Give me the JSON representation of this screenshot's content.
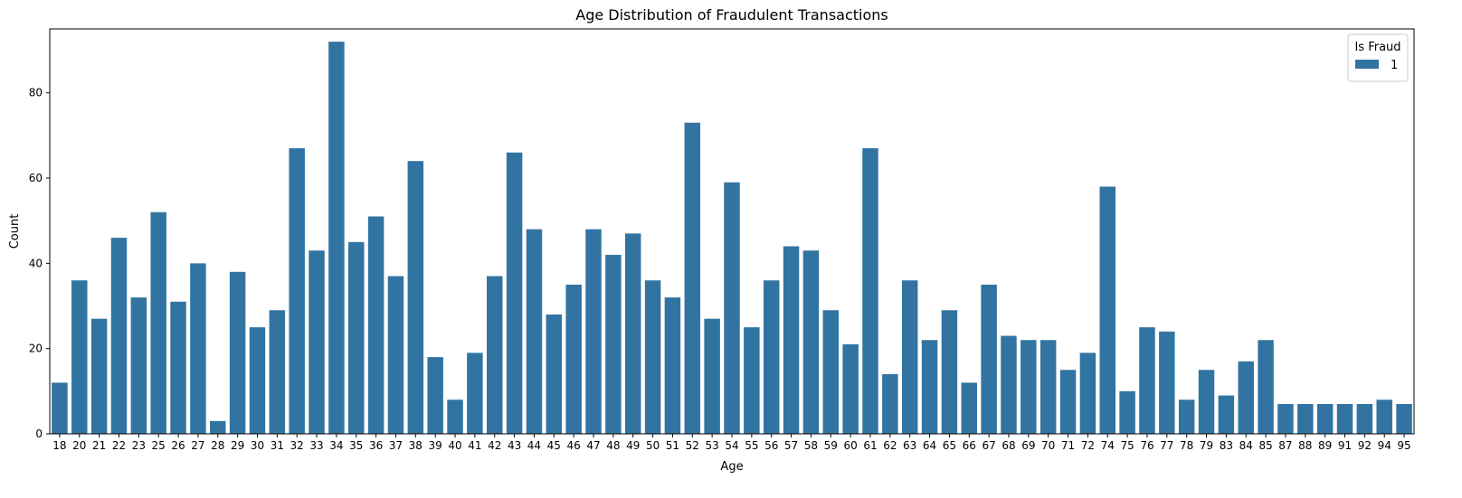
{
  "chart_data": {
    "type": "bar",
    "title": "Age Distribution of Fraudulent Transactions",
    "xlabel": "Age",
    "ylabel": "Count",
    "ylim": [
      0,
      95
    ],
    "yticks": [
      0,
      20,
      40,
      60,
      80
    ],
    "grid": false,
    "legend": {
      "title": "Is Fraud",
      "entries": [
        "1"
      ],
      "position": "top-right"
    },
    "colors": {
      "bar": "#3274a1"
    },
    "categories": [
      "18",
      "20",
      "21",
      "22",
      "23",
      "25",
      "26",
      "27",
      "28",
      "29",
      "30",
      "31",
      "32",
      "33",
      "34",
      "35",
      "36",
      "37",
      "38",
      "39",
      "40",
      "41",
      "42",
      "43",
      "44",
      "45",
      "46",
      "47",
      "48",
      "49",
      "50",
      "51",
      "52",
      "53",
      "54",
      "55",
      "56",
      "57",
      "58",
      "59",
      "60",
      "61",
      "62",
      "63",
      "64",
      "65",
      "66",
      "67",
      "68",
      "69",
      "70",
      "71",
      "72",
      "74",
      "75",
      "76",
      "77",
      "78",
      "79",
      "83",
      "84",
      "85",
      "87",
      "88",
      "89",
      "91",
      "92",
      "94",
      "95"
    ],
    "series": [
      {
        "name": "1",
        "values": [
          12,
          36,
          27,
          46,
          32,
          52,
          31,
          40,
          3,
          38,
          25,
          29,
          67,
          43,
          92,
          45,
          51,
          37,
          64,
          18,
          8,
          19,
          37,
          66,
          48,
          28,
          35,
          48,
          42,
          47,
          36,
          32,
          73,
          27,
          59,
          25,
          36,
          44,
          43,
          29,
          21,
          67,
          14,
          36,
          22,
          29,
          12,
          35,
          23,
          22,
          22,
          15,
          19,
          58,
          10,
          25,
          24,
          8,
          15,
          9,
          17,
          22,
          7,
          7,
          7,
          7,
          7,
          8,
          7
        ]
      }
    ]
  }
}
